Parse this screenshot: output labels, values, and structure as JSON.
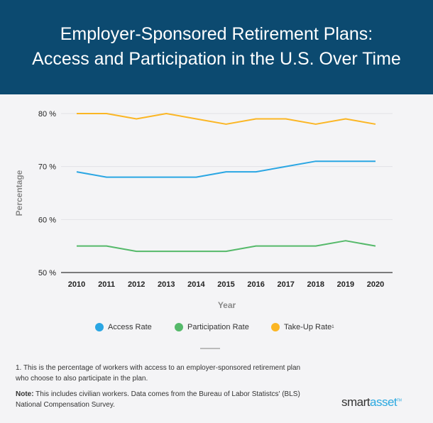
{
  "header": {
    "line1": "Employer-Sponsored Retirement Plans:",
    "line2": "Access and Participation in the U.S. Over Time"
  },
  "chart_data": {
    "type": "line",
    "title": "Employer-Sponsored Retirement Plans: Access and Participation in the U.S. Over Time",
    "xlabel": "Year",
    "ylabel": "Percentage",
    "x": [
      2010,
      2011,
      2012,
      2013,
      2014,
      2015,
      2016,
      2017,
      2018,
      2019,
      2020
    ],
    "x_tick_labels": [
      "2010",
      "2011",
      "2012",
      "2013",
      "2014",
      "2015",
      "2016",
      "2017",
      "2018",
      "2019",
      "2020"
    ],
    "ylim": [
      50,
      80
    ],
    "y_ticks": [
      50,
      60,
      70,
      80
    ],
    "y_tick_labels": [
      "50 %",
      "60 %",
      "70 %",
      "80 %"
    ],
    "grid": true,
    "legend_placement": "bottom",
    "series": [
      {
        "name": "Access Rate",
        "color": "#2aa6e3",
        "values": [
          69,
          68,
          68,
          68,
          68,
          69,
          69,
          70,
          71,
          71,
          71
        ]
      },
      {
        "name": "Participation Rate",
        "color": "#55b96a",
        "values": [
          55,
          55,
          54,
          54,
          54,
          54,
          55,
          55,
          55,
          56,
          55
        ]
      },
      {
        "name": "Take-Up Rate",
        "color": "#fbb624",
        "values": [
          80,
          80,
          79,
          80,
          79,
          78,
          79,
          79,
          78,
          79,
          78
        ]
      }
    ]
  },
  "legend": {
    "items": [
      {
        "label": "Access Rate"
      },
      {
        "label": "Participation Rate"
      },
      {
        "label": "Take-Up Rate",
        "superscript": "1"
      }
    ]
  },
  "footnotes": {
    "footnote1": "1. This is the percentage of workers with access to an employer-sponsored retirement plan who choose to also participate in the plan.",
    "note_label": "Note:",
    "note_text": " This includes civilian workers. Data comes from the Bureau of Labor Statistcs' (BLS) National Compensation Survey."
  },
  "logo": {
    "part1": "smart",
    "part2": "asset",
    "tm": "TM"
  }
}
